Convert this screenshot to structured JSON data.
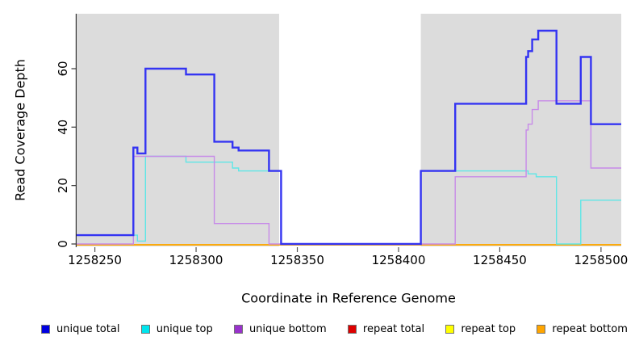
{
  "chart_data": {
    "type": "line",
    "subtype": "step",
    "title": "",
    "xlabel": "Coordinate in Reference Genome",
    "ylabel": "Read Coverage Depth",
    "xlim": [
      1258241,
      1258510
    ],
    "ylim": [
      0,
      76
    ],
    "x_ticks": [
      1258250,
      1258300,
      1258350,
      1258400,
      1258450,
      1258500
    ],
    "y_ticks": [
      0,
      20,
      40,
      60
    ],
    "grid": false,
    "legend_position": "bottom",
    "shaded_regions": [
      {
        "x0": 1258241,
        "x1": 1258341,
        "color": "#DCDCDC"
      },
      {
        "x0": 1258411,
        "x1": 1258510,
        "color": "#DCDCDC"
      }
    ],
    "series": [
      {
        "name": "unique total",
        "color": "#3434F2",
        "legend_color": "#0000E0",
        "width": 2.4,
        "draw_order": 6,
        "points": [
          [
            1258241,
            3
          ],
          [
            1258269,
            33
          ],
          [
            1258271,
            31
          ],
          [
            1258275,
            60
          ],
          [
            1258295,
            58
          ],
          [
            1258309,
            35
          ],
          [
            1258318,
            33
          ],
          [
            1258321,
            32
          ],
          [
            1258336,
            25
          ],
          [
            1258342,
            0
          ],
          [
            1258411,
            25
          ],
          [
            1258428,
            48
          ],
          [
            1258463,
            64
          ],
          [
            1258464,
            66
          ],
          [
            1258466,
            70
          ],
          [
            1258469,
            73
          ],
          [
            1258478,
            48
          ],
          [
            1258490,
            64
          ],
          [
            1258495,
            41
          ],
          [
            1258510,
            41
          ]
        ]
      },
      {
        "name": "unique top",
        "color": "#5FE6E6",
        "legend_color": "#00E5EE",
        "width": 1.4,
        "draw_order": 4,
        "points": [
          [
            1258241,
            3
          ],
          [
            1258271,
            1
          ],
          [
            1258275,
            30
          ],
          [
            1258295,
            28
          ],
          [
            1258318,
            26
          ],
          [
            1258321,
            25
          ],
          [
            1258342,
            0
          ],
          [
            1258411,
            25
          ],
          [
            1258464,
            24
          ],
          [
            1258468,
            23
          ],
          [
            1258478,
            0
          ],
          [
            1258490,
            15
          ],
          [
            1258510,
            15
          ]
        ]
      },
      {
        "name": "unique bottom",
        "color": "#C78AE8",
        "legend_color": "#9932CC",
        "width": 1.4,
        "draw_order": 5,
        "points": [
          [
            1258241,
            0
          ],
          [
            1258269,
            30
          ],
          [
            1258309,
            7
          ],
          [
            1258336,
            0
          ],
          [
            1258411,
            0
          ],
          [
            1258428,
            23
          ],
          [
            1258463,
            39
          ],
          [
            1258464,
            41
          ],
          [
            1258466,
            46
          ],
          [
            1258469,
            49
          ],
          [
            1258495,
            26
          ],
          [
            1258510,
            26
          ]
        ]
      },
      {
        "name": "repeat total",
        "color": "#E00000",
        "legend_color": "#DD0000",
        "width": 1.4,
        "draw_order": 1,
        "points": [
          [
            1258241,
            0
          ],
          [
            1258510,
            0
          ]
        ]
      },
      {
        "name": "repeat top",
        "color": "#FFFF00",
        "legend_color": "#FFFF00",
        "width": 1.4,
        "draw_order": 2,
        "points": [
          [
            1258241,
            0
          ],
          [
            1258510,
            0
          ]
        ]
      },
      {
        "name": "repeat bottom",
        "color": "#FFA500",
        "legend_color": "#FFA500",
        "width": 1.4,
        "draw_order": 3,
        "points": [
          [
            1258241,
            0
          ],
          [
            1258510,
            0
          ]
        ]
      }
    ]
  }
}
